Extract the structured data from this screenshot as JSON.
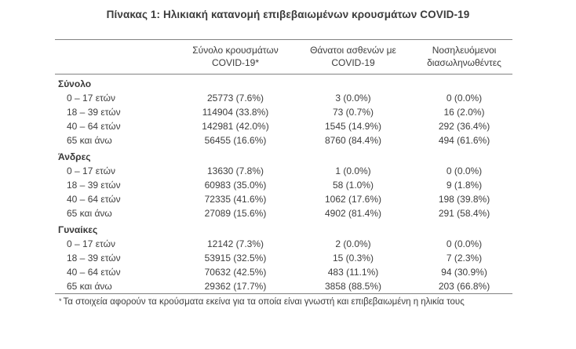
{
  "title": "Πίνακας 1: Ηλικιακή κατανομή επιβεβαιωμένων κρουσμάτων COVID-19",
  "colors": {
    "background": "#ffffff",
    "text": "#3d3d3d",
    "rule": "#828282"
  },
  "table": {
    "columns": [
      {
        "line1": "Σύνολο κρουσμάτων",
        "line2": "COVID-19*"
      },
      {
        "line1": "Θάνατοι ασθενών με",
        "line2": "COVID-19"
      },
      {
        "line1": "Νοσηλευόμενοι",
        "line2": "διασωληνωθέντες"
      }
    ],
    "sections": [
      {
        "name": "Σύνολο",
        "rows": [
          {
            "label": "0 – 17 ετών",
            "cases": "25773 (7.6%)",
            "deaths": "3 (0.0%)",
            "intubated": "0 (0.0%)"
          },
          {
            "label": "18 – 39 ετών",
            "cases": "114904 (33.8%)",
            "deaths": "73 (0.7%)",
            "intubated": "16 (2.0%)"
          },
          {
            "label": "40 – 64 ετών",
            "cases": "142981 (42.0%)",
            "deaths": "1545 (14.9%)",
            "intubated": "292 (36.4%)"
          },
          {
            "label": "65 και άνω",
            "cases": "56455 (16.6%)",
            "deaths": "8760 (84.4%)",
            "intubated": "494 (61.6%)"
          }
        ]
      },
      {
        "name": "Άνδρες",
        "rows": [
          {
            "label": "0 – 17 ετών",
            "cases": "13630 (7.8%)",
            "deaths": "1 (0.0%)",
            "intubated": "0 (0.0%)"
          },
          {
            "label": "18 – 39 ετών",
            "cases": "60983 (35.0%)",
            "deaths": "58 (1.0%)",
            "intubated": "9 (1.8%)"
          },
          {
            "label": "40 – 64 ετών",
            "cases": "72335 (41.6%)",
            "deaths": "1062 (17.6%)",
            "intubated": "198 (39.8%)"
          },
          {
            "label": "65 και άνω",
            "cases": "27089 (15.6%)",
            "deaths": "4902 (81.4%)",
            "intubated": "291 (58.4%)"
          }
        ]
      },
      {
        "name": "Γυναίκες",
        "rows": [
          {
            "label": "0 – 17 ετών",
            "cases": "12142 (7.3%)",
            "deaths": "2 (0.0%)",
            "intubated": "0 (0.0%)"
          },
          {
            "label": "18 – 39 ετών",
            "cases": "53915 (32.5%)",
            "deaths": "15 (0.3%)",
            "intubated": "7 (2.3%)"
          },
          {
            "label": "40 – 64 ετών",
            "cases": "70632 (42.5%)",
            "deaths": "483 (11.1%)",
            "intubated": "94 (30.9%)"
          },
          {
            "label": "65 και άνω",
            "cases": "29362 (17.7%)",
            "deaths": "3858 (88.5%)",
            "intubated": "203 (66.8%)"
          }
        ]
      }
    ],
    "footnote_marker": "*",
    "footnote": "Τα στοιχεία αφορούν τα κρούσματα εκείνα για τα οποία είναι γνωστή και επιβεβαιωμένη η ηλικία τους"
  }
}
